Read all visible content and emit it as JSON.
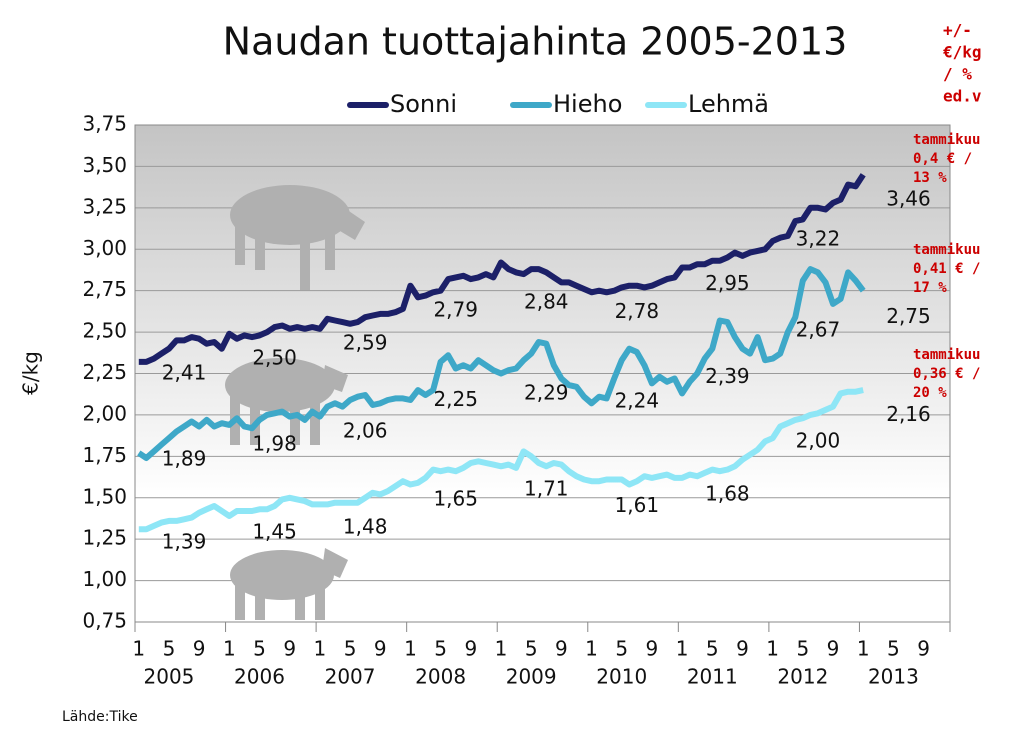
{
  "chart_data": {
    "type": "line",
    "title": "Naudan tuottajahinta 2005-2013",
    "y_label": "€/kg",
    "source": "Lähde:Tike",
    "categories": [
      "1",
      null,
      null,
      null,
      "5",
      null,
      null,
      null,
      "9",
      null,
      null,
      null,
      "1",
      null,
      null,
      null,
      "5",
      null,
      null,
      null,
      "9",
      null,
      null,
      null,
      "1",
      null,
      null,
      null,
      "5",
      null,
      null,
      null,
      "9",
      null,
      null,
      null,
      "1",
      null,
      null,
      null,
      "5",
      null,
      null,
      null,
      "9",
      null,
      null,
      null,
      "1",
      null,
      null,
      null,
      "5",
      null,
      null,
      null,
      "9",
      null,
      null,
      null,
      "1",
      null,
      null,
      null,
      "5",
      null,
      null,
      null,
      "9",
      null,
      null,
      null,
      "1",
      null,
      null,
      null,
      "5",
      null,
      null,
      null,
      "9",
      null,
      null,
      null,
      "1",
      null,
      null,
      null,
      "5",
      null,
      null,
      null,
      "9",
      null,
      null,
      null,
      "1",
      null,
      null,
      null,
      "5",
      null,
      null,
      null,
      "9",
      null,
      null,
      null
    ],
    "years": [
      "2005",
      "2006",
      "2007",
      "2008",
      "2009",
      "2010",
      "2011",
      "2012",
      "2013"
    ],
    "ylim": [
      0.75,
      3.75
    ],
    "yticks": [
      {
        "value": 0.75,
        "label": "0,75"
      },
      {
        "value": 1,
        "label": "1,00"
      },
      {
        "value": 1.25,
        "label": "1,25"
      },
      {
        "value": 1.5,
        "label": "1,50"
      },
      {
        "value": 1.75,
        "label": "1,75"
      },
      {
        "value": 2,
        "label": "2,00"
      },
      {
        "value": 2.25,
        "label": "2,25"
      },
      {
        "value": 2.5,
        "label": "2,50"
      },
      {
        "value": 2.75,
        "label": "2,75"
      },
      {
        "value": 3,
        "label": "3,00"
      },
      {
        "value": 3.25,
        "label": "3,25"
      },
      {
        "value": 3.5,
        "label": "3,50"
      },
      {
        "value": 3.75,
        "label": "3,75"
      }
    ],
    "grid": true,
    "legend": "top",
    "series": [
      {
        "name": "Sonni",
        "color": "#1c2068",
        "values": [
          2.32,
          2.32,
          2.34,
          2.37,
          2.4,
          2.45,
          2.45,
          2.47,
          2.46,
          2.43,
          2.44,
          2.4,
          2.49,
          2.46,
          2.48,
          2.47,
          2.48,
          2.5,
          2.53,
          2.54,
          2.52,
          2.53,
          2.52,
          2.53,
          2.52,
          2.58,
          2.57,
          2.56,
          2.55,
          2.56,
          2.59,
          2.6,
          2.61,
          2.61,
          2.62,
          2.64,
          2.78,
          2.71,
          2.72,
          2.74,
          2.75,
          2.82,
          2.83,
          2.84,
          2.82,
          2.83,
          2.85,
          2.83,
          2.92,
          2.88,
          2.86,
          2.85,
          2.88,
          2.88,
          2.86,
          2.83,
          2.8,
          2.8,
          2.78,
          2.76,
          2.74,
          2.75,
          2.74,
          2.75,
          2.77,
          2.78,
          2.78,
          2.77,
          2.78,
          2.8,
          2.82,
          2.83,
          2.89,
          2.89,
          2.91,
          2.91,
          2.93,
          2.93,
          2.95,
          2.98,
          2.96,
          2.98,
          2.99,
          3.0,
          3.05,
          3.07,
          3.08,
          3.17,
          3.18,
          3.25,
          3.25,
          3.24,
          3.28,
          3.3,
          3.39,
          3.38,
          3.45,
          null,
          null,
          null,
          null,
          null,
          null,
          null,
          null,
          null,
          null,
          null
        ],
        "label_values": [
          2.41,
          2.5,
          2.59,
          2.79,
          2.84,
          2.78,
          2.95,
          3.22,
          3.46
        ],
        "label_texts": [
          "2,41",
          "2,50",
          "2,59",
          "2,79",
          "2,84",
          "2,78",
          "2,95",
          "3,22",
          "3,46"
        ]
      },
      {
        "name": "Hieho",
        "color": "#3ea8c8",
        "values": [
          1.77,
          1.74,
          1.78,
          1.82,
          1.86,
          1.9,
          1.93,
          1.96,
          1.93,
          1.97,
          1.93,
          1.95,
          1.94,
          1.98,
          1.93,
          1.92,
          1.97,
          2.0,
          2.01,
          2.02,
          1.99,
          2.0,
          1.97,
          2.02,
          1.99,
          2.05,
          2.07,
          2.05,
          2.09,
          2.11,
          2.12,
          2.06,
          2.07,
          2.09,
          2.1,
          2.1,
          2.09,
          2.15,
          2.12,
          2.15,
          2.32,
          2.36,
          2.28,
          2.3,
          2.28,
          2.33,
          2.3,
          2.27,
          2.25,
          2.27,
          2.28,
          2.33,
          2.37,
          2.44,
          2.43,
          2.3,
          2.22,
          2.18,
          2.17,
          2.11,
          2.07,
          2.11,
          2.1,
          2.22,
          2.33,
          2.4,
          2.38,
          2.3,
          2.19,
          2.23,
          2.2,
          2.22,
          2.13,
          2.2,
          2.25,
          2.34,
          2.4,
          2.57,
          2.56,
          2.47,
          2.4,
          2.37,
          2.47,
          2.33,
          2.34,
          2.37,
          2.5,
          2.59,
          2.81,
          2.88,
          2.86,
          2.8,
          2.67,
          2.7,
          2.86,
          2.81,
          2.75,
          null,
          null,
          null,
          null,
          null,
          null,
          null,
          null,
          null,
          null,
          null
        ],
        "label_values": [
          1.89,
          1.98,
          2.06,
          2.25,
          2.29,
          2.24,
          2.39,
          2.67,
          2.75
        ],
        "label_texts": [
          "1,89",
          "1,98",
          "2,06",
          "2,25",
          "2,29",
          "2,24",
          "2,39",
          "2,67",
          "2,75"
        ]
      },
      {
        "name": "Lehmä",
        "color": "#8ee6f6",
        "values": [
          1.31,
          1.31,
          1.33,
          1.35,
          1.36,
          1.36,
          1.37,
          1.38,
          1.41,
          1.43,
          1.45,
          1.42,
          1.39,
          1.42,
          1.42,
          1.42,
          1.43,
          1.43,
          1.45,
          1.49,
          1.5,
          1.49,
          1.48,
          1.46,
          1.46,
          1.46,
          1.47,
          1.47,
          1.47,
          1.47,
          1.5,
          1.53,
          1.52,
          1.54,
          1.57,
          1.6,
          1.58,
          1.59,
          1.62,
          1.67,
          1.66,
          1.67,
          1.66,
          1.68,
          1.71,
          1.72,
          1.71,
          1.7,
          1.69,
          1.7,
          1.68,
          1.78,
          1.75,
          1.71,
          1.69,
          1.71,
          1.7,
          1.66,
          1.63,
          1.61,
          1.6,
          1.6,
          1.61,
          1.61,
          1.61,
          1.58,
          1.6,
          1.63,
          1.62,
          1.63,
          1.64,
          1.62,
          1.62,
          1.64,
          1.63,
          1.65,
          1.67,
          1.66,
          1.67,
          1.69,
          1.73,
          1.76,
          1.79,
          1.84,
          1.86,
          1.93,
          1.95,
          1.97,
          1.98,
          2.0,
          2.01,
          2.03,
          2.05,
          2.13,
          2.14,
          2.14,
          2.15,
          null,
          null,
          null,
          null,
          null,
          null,
          null,
          null,
          null,
          null,
          null
        ],
        "label_values": [
          1.39,
          1.45,
          1.48,
          1.65,
          1.71,
          1.61,
          1.68,
          2.0,
          2.16
        ],
        "label_texts": [
          "1,39",
          "1,45",
          "1,48",
          "1,65",
          "1,71",
          "1,61",
          "1,68",
          "2,00",
          "2,16"
        ]
      }
    ],
    "notes_header": [
      "+/-",
      "€/kg",
      "/ %",
      "ed.v"
    ],
    "notes": [
      [
        "tammikuu",
        "0,4 €  /",
        "13 %"
      ],
      [
        "tammikuu",
        "0,41 €  /",
        "17 %"
      ],
      [
        "tammikuu",
        "0,36 €  /",
        "20 %"
      ]
    ]
  }
}
